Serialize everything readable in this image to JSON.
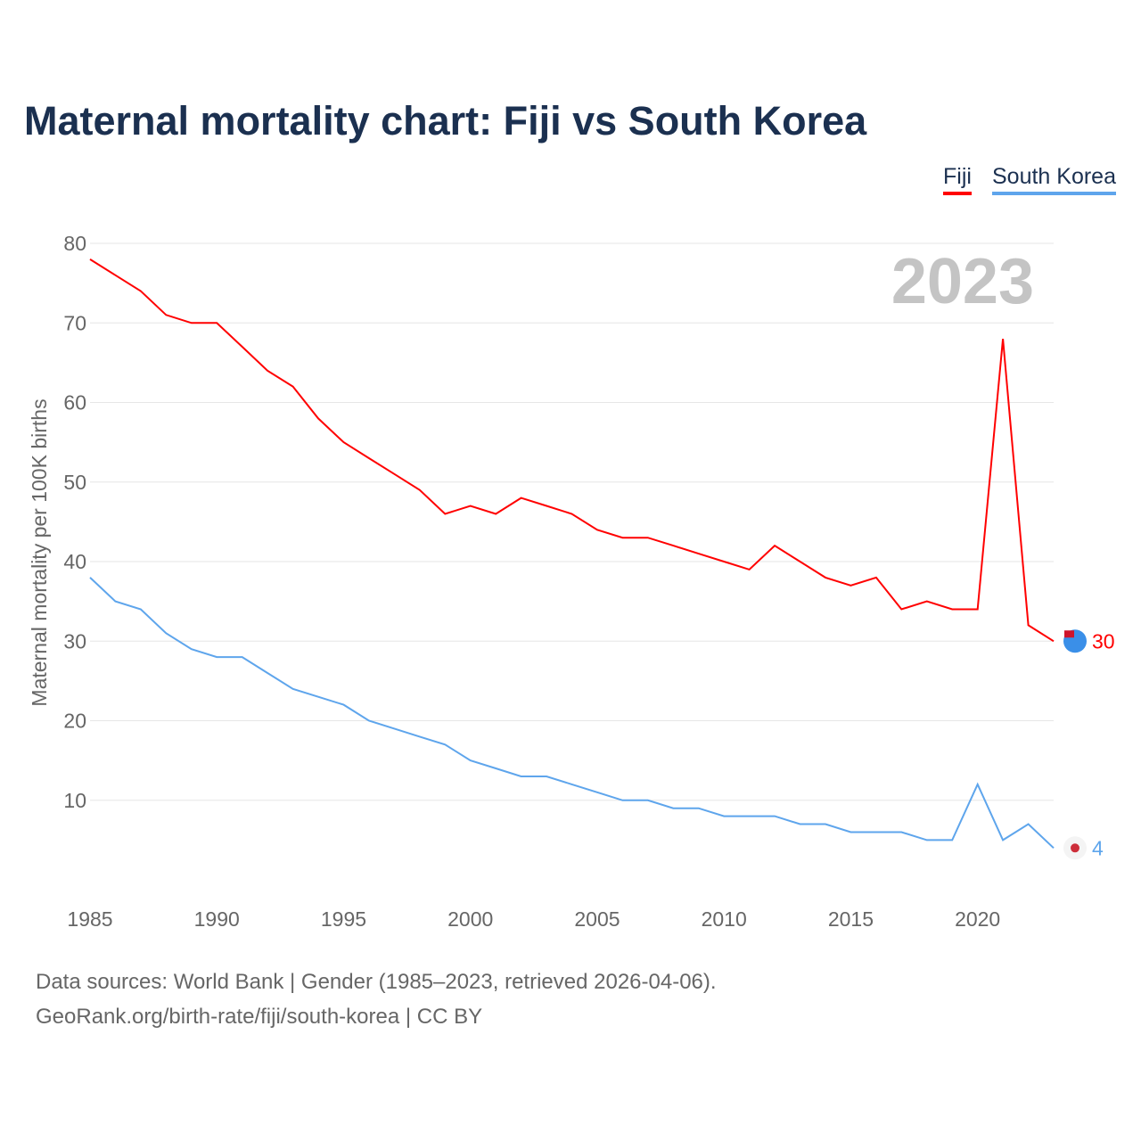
{
  "title": "Maternal mortality chart: Fiji vs South Korea",
  "source_line1": "Data sources: World Bank | Gender (1985–2023, retrieved 2026-04-06).",
  "source_line2": "GeoRank.org/birth-rate/fiji/south-korea | CC BY",
  "colors": {
    "fiji": "#ff0000",
    "south_korea": "#5ea5ec"
  },
  "chart_data": {
    "type": "line",
    "title": "Maternal mortality chart: Fiji vs South Korea",
    "ylabel": "Maternal mortality per 100K births",
    "xlabel": "",
    "year_label": "2023",
    "ylim": [
      0,
      80
    ],
    "xlim": [
      1985,
      2023
    ],
    "yticks": [
      10,
      20,
      30,
      40,
      50,
      60,
      70,
      80
    ],
    "xticks": [
      1985,
      1990,
      1995,
      2000,
      2005,
      2010,
      2015,
      2020
    ],
    "grid": true,
    "legend_position": "top-right",
    "x": [
      1985,
      1986,
      1987,
      1988,
      1989,
      1990,
      1991,
      1992,
      1993,
      1994,
      1995,
      1996,
      1997,
      1998,
      1999,
      2000,
      2001,
      2002,
      2003,
      2004,
      2005,
      2006,
      2007,
      2008,
      2009,
      2010,
      2011,
      2012,
      2013,
      2014,
      2015,
      2016,
      2017,
      2018,
      2019,
      2020,
      2021,
      2022,
      2023
    ],
    "series": [
      {
        "name": "Fiji",
        "end_label": "30",
        "values": [
          78,
          76,
          74,
          71,
          70,
          70,
          67,
          64,
          62,
          58,
          55,
          53,
          51,
          49,
          46,
          47,
          46,
          48,
          47,
          46,
          44,
          43,
          43,
          42,
          41,
          40,
          39,
          42,
          40,
          38,
          37,
          38,
          34,
          35,
          34,
          34,
          68,
          32,
          30
        ]
      },
      {
        "name": "South Korea",
        "end_label": "4",
        "values": [
          38,
          35,
          34,
          31,
          29,
          28,
          28,
          26,
          24,
          23,
          22,
          20,
          19,
          18,
          17,
          15,
          14,
          13,
          13,
          12,
          11,
          10,
          10,
          9,
          9,
          8,
          8,
          8,
          7,
          7,
          6,
          6,
          6,
          5,
          5,
          12,
          5,
          7,
          4
        ]
      }
    ]
  }
}
